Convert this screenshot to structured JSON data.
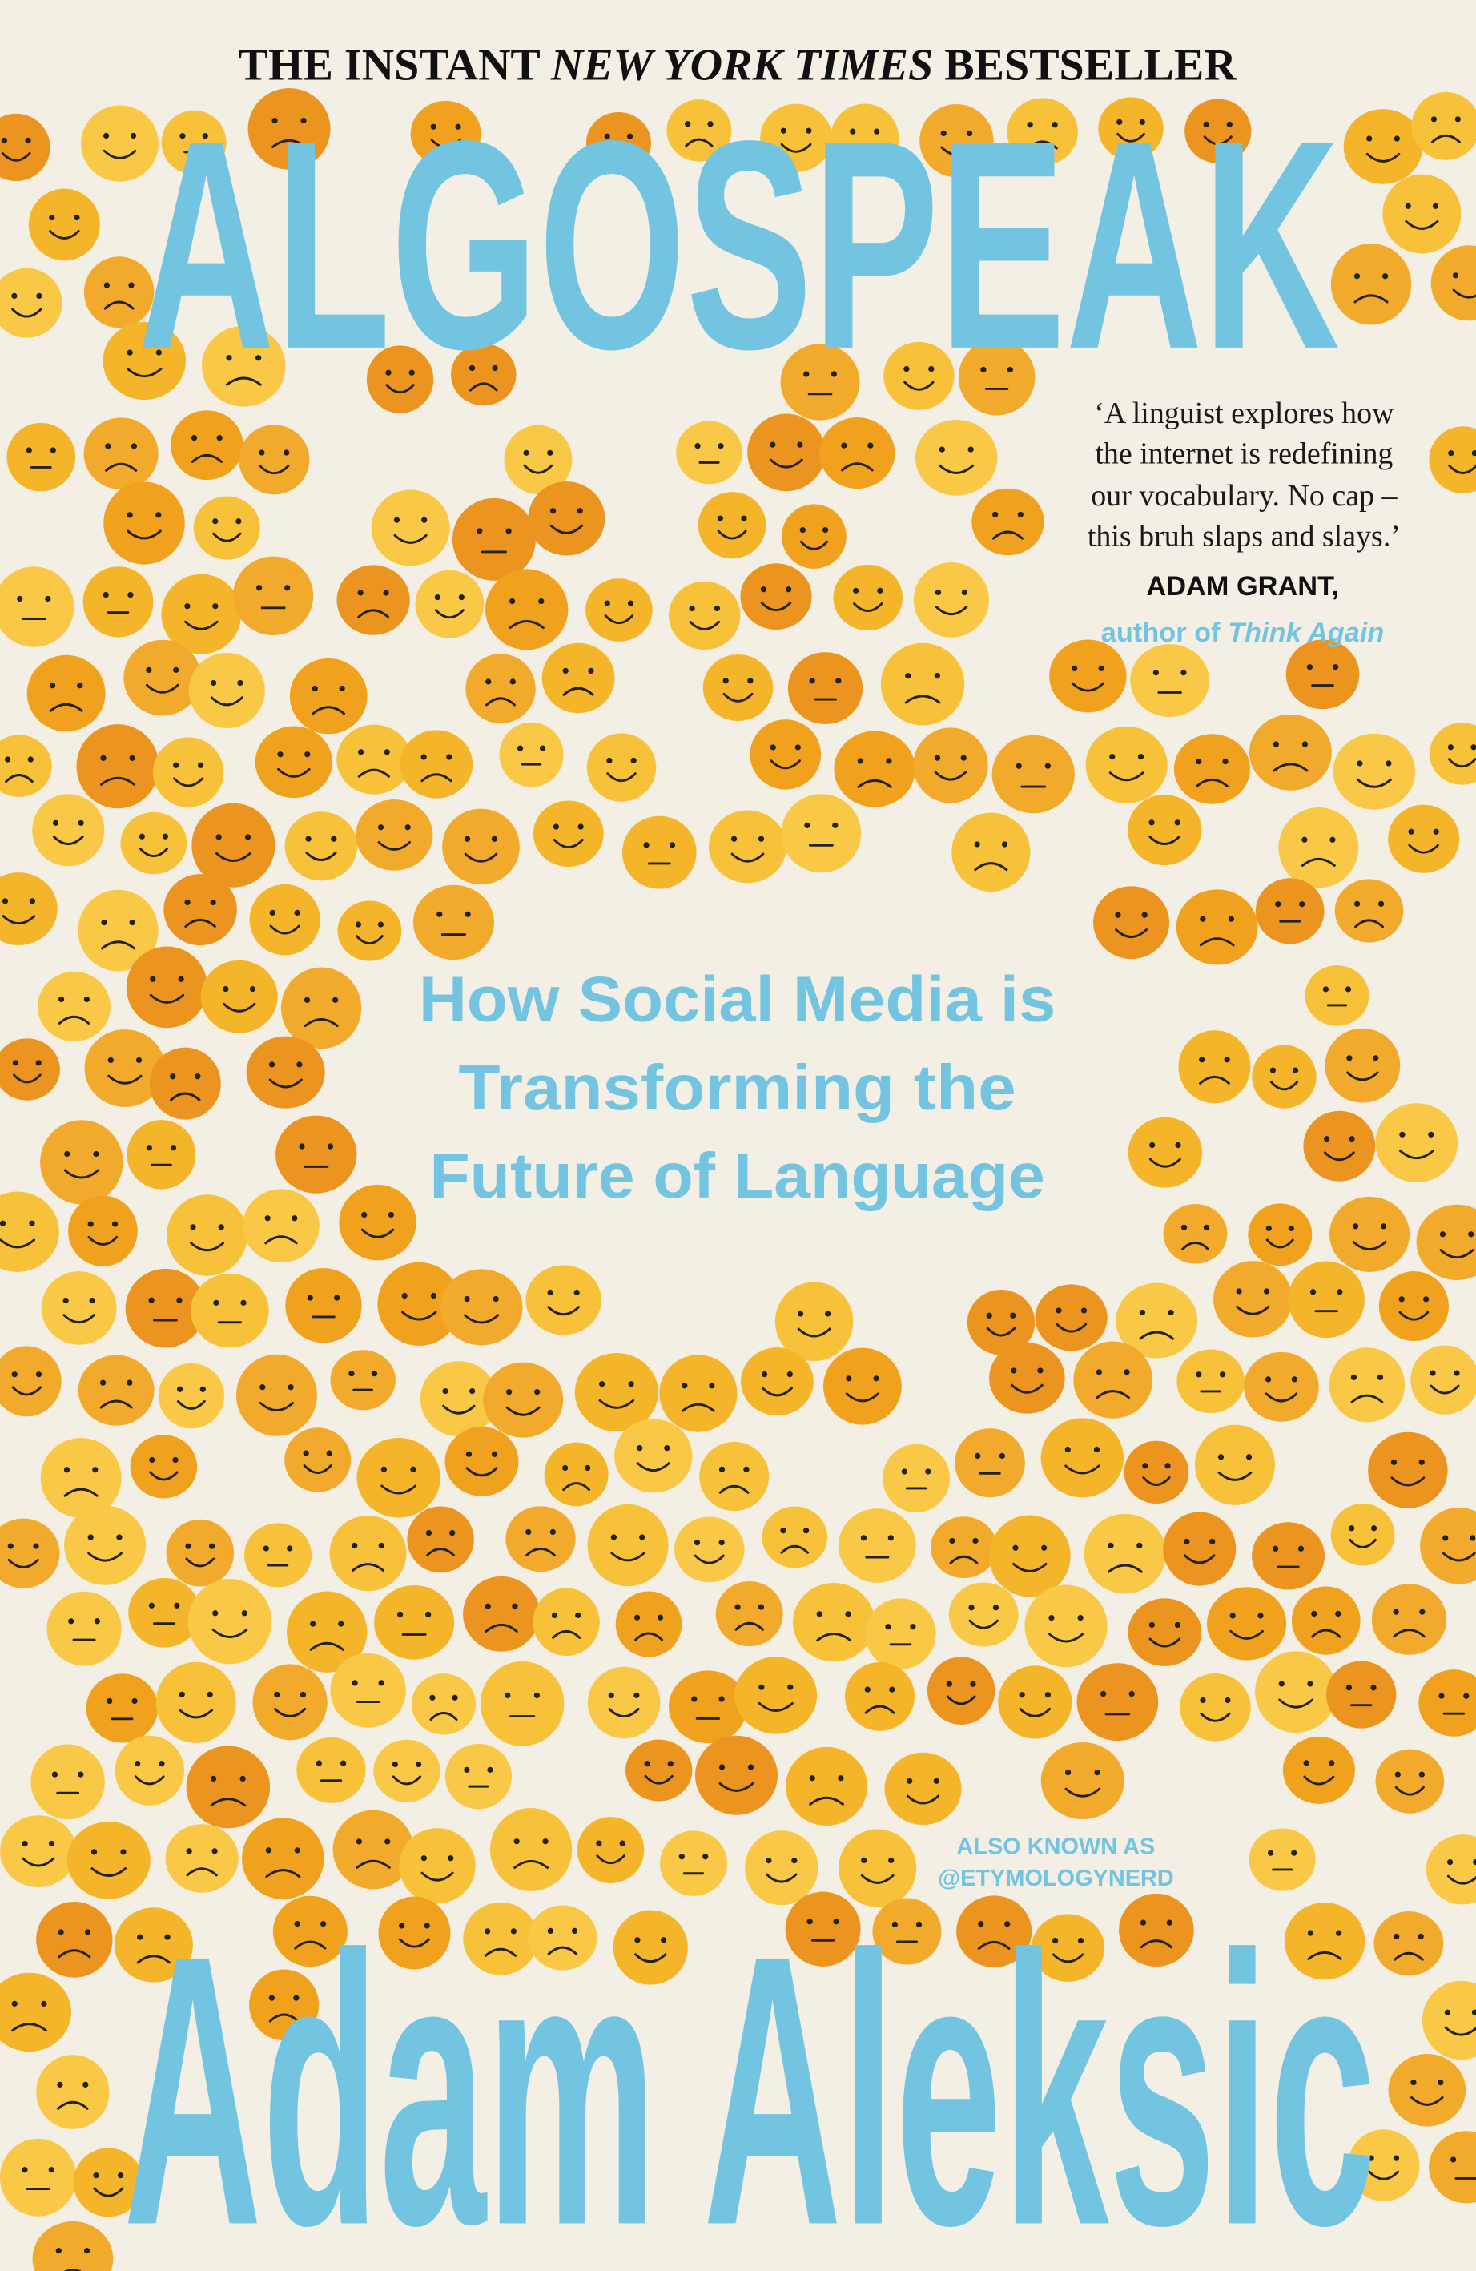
{
  "banner": {
    "prefix": "THE INSTANT ",
    "emphasis": "NEW YORK TIMES",
    "suffix": " BESTSELLER"
  },
  "title": "ALGOSPEAK",
  "quote": {
    "lines": [
      "‘A linguist explores how",
      "the internet is redefining",
      "our vocabulary. No cap –",
      "this bruh slaps and slays.’"
    ],
    "author": "ADAM GRANT,",
    "role_prefix": "author of ",
    "role_book": "Think Again"
  },
  "subtitle": [
    "How Social Media is",
    "Transforming the",
    "Future of Language"
  ],
  "alias": [
    "ALSO KNOWN AS",
    "@ETYMOLOGYNERD"
  ],
  "author": "Adam Aleksic"
}
